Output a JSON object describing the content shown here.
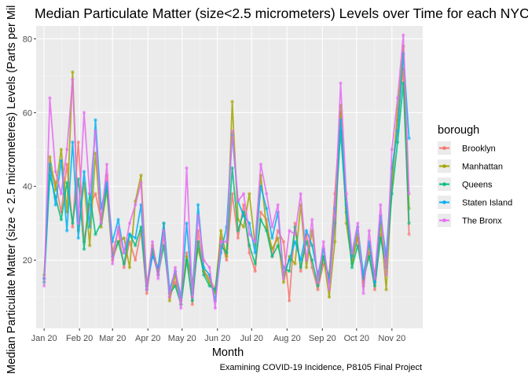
{
  "chart_data": {
    "type": "line",
    "title": "Median Particulate Matter (size<2.5 micrometers) Levels over Time for each NYC",
    "xlabel": "Month",
    "ylabel": "Median Particulate Matter (size < 2.5 micrometeres) Levels (Parts per Mil",
    "caption": "Examining COVID-19 Incidence, P8105 Final Project",
    "x_tick_labels": [
      "Jan 20",
      "Feb 20",
      "Mar 20",
      "Apr 20",
      "May 20",
      "Jun 20",
      "Jul 20",
      "Aug 20",
      "Sep 20",
      "Oct 20",
      "Nov 20"
    ],
    "y_ticks": [
      20,
      40,
      60,
      80
    ],
    "ylim": [
      1.5,
      83.5
    ],
    "x_range_days": [
      -7,
      332
    ],
    "grid": true,
    "legend": {
      "title": "borough",
      "position": "right"
    },
    "series": [
      {
        "name": "Brooklyn",
        "color": "#F8766D",
        "x": [
          0,
          5,
          10,
          15,
          20,
          25,
          30,
          35,
          40,
          45,
          50,
          55,
          60,
          65,
          70,
          75,
          80,
          85,
          90,
          95,
          100,
          105,
          110,
          115,
          120,
          125,
          130,
          135,
          140,
          145,
          150,
          155,
          160,
          165,
          170,
          175,
          180,
          185,
          190,
          195,
          200,
          205,
          210,
          215,
          220,
          225,
          230,
          235,
          240,
          245,
          250,
          255,
          260,
          265,
          270,
          275,
          280,
          285,
          290,
          295,
          300,
          305,
          310,
          315,
          320
        ],
        "values": [
          15,
          45,
          41,
          33,
          46,
          29,
          52,
          25,
          35,
          38,
          31,
          43,
          22,
          28,
          18,
          25,
          20,
          28,
          11,
          22,
          16,
          27,
          10,
          14,
          9,
          22,
          8,
          28,
          17,
          15,
          12,
          26,
          20,
          38,
          26,
          35,
          22,
          17,
          33,
          31,
          21,
          28,
          25,
          9,
          30,
          17,
          27,
          18,
          12,
          19,
          16,
          38,
          60,
          34,
          20,
          26,
          14,
          22,
          12,
          27,
          20,
          41,
          58,
          72,
          27
        ]
      },
      {
        "name": "Manhattan",
        "color": "#A3A500",
        "x": [
          0,
          5,
          10,
          15,
          20,
          25,
          30,
          35,
          40,
          45,
          50,
          55,
          60,
          65,
          70,
          75,
          80,
          85,
          90,
          95,
          100,
          105,
          110,
          115,
          120,
          125,
          130,
          135,
          140,
          145,
          150,
          155,
          160,
          165,
          170,
          175,
          180,
          185,
          190,
          195,
          200,
          205,
          210,
          215,
          220,
          225,
          230,
          235,
          240,
          245,
          250,
          255,
          260,
          265,
          270,
          275,
          280,
          285,
          290,
          295,
          300,
          305,
          310,
          315,
          320
        ],
        "values": [
          16,
          48,
          39,
          50,
          33,
          71,
          28,
          41,
          24,
          49,
          29,
          39,
          20,
          25,
          26,
          18,
          36,
          43,
          13,
          24,
          17,
          30,
          9,
          16,
          8,
          21,
          14,
          23,
          17,
          14,
          11,
          28,
          21,
          63,
          31,
          29,
          38,
          24,
          43,
          29,
          23,
          26,
          14,
          21,
          19,
          35,
          18,
          28,
          15,
          21,
          10,
          25,
          62,
          30,
          19,
          27,
          13,
          24,
          16,
          30,
          12,
          41,
          61,
          78,
          34
        ]
      },
      {
        "name": "Queens",
        "color": "#00BF7D",
        "x": [
          0,
          5,
          10,
          15,
          20,
          25,
          30,
          35,
          40,
          45,
          50,
          55,
          60,
          65,
          70,
          75,
          80,
          85,
          90,
          95,
          100,
          105,
          110,
          115,
          120,
          125,
          130,
          135,
          140,
          145,
          150,
          155,
          160,
          165,
          170,
          175,
          180,
          185,
          190,
          195,
          200,
          205,
          210,
          215,
          220,
          225,
          230,
          235,
          240,
          245,
          250,
          255,
          260,
          265,
          270,
          275,
          280,
          285,
          290,
          295,
          300,
          305,
          310,
          315,
          320
        ],
        "values": [
          14,
          43,
          37,
          31,
          41,
          30,
          42,
          23,
          38,
          27,
          30,
          40,
          21,
          25,
          19,
          27,
          24,
          29,
          12,
          23,
          16,
          24,
          11,
          13,
          8,
          20,
          9,
          25,
          16,
          13,
          12,
          24,
          22,
          45,
          28,
          33,
          24,
          19,
          31,
          28,
          21,
          24,
          18,
          17,
          29,
          18,
          25,
          20,
          13,
          21,
          15,
          30,
          55,
          33,
          18,
          24,
          15,
          21,
          13,
          26,
          18,
          38,
          52,
          68,
          30
        ]
      },
      {
        "name": "Staten Island",
        "color": "#00B0F6",
        "x": [
          0,
          5,
          10,
          15,
          20,
          25,
          30,
          35,
          40,
          45,
          50,
          55,
          60,
          65,
          70,
          75,
          80,
          85,
          90,
          95,
          100,
          105,
          110,
          115,
          120,
          125,
          130,
          135,
          140,
          145,
          150,
          155,
          160,
          165,
          170,
          175,
          180,
          185,
          190,
          195,
          200,
          205,
          210,
          215,
          220,
          225,
          230,
          235,
          240,
          245,
          250,
          255,
          260,
          265,
          270,
          275,
          280,
          285,
          290,
          295,
          300,
          305,
          310,
          315,
          320
        ],
        "values": [
          15,
          46,
          35,
          47,
          28,
          52,
          26,
          44,
          29,
          58,
          34,
          41,
          25,
          31,
          22,
          27,
          26,
          35,
          13,
          21,
          18,
          30,
          12,
          17,
          10,
          30,
          11,
          35,
          18,
          16,
          9,
          22,
          29,
          54,
          36,
          32,
          30,
          22,
          40,
          34,
          26,
          33,
          16,
          20,
          25,
          20,
          28,
          24,
          16,
          23,
          14,
          34,
          58,
          35,
          21,
          29,
          16,
          25,
          14,
          32,
          21,
          45,
          55,
          76,
          53
        ]
      },
      {
        "name": "The Bronx",
        "color": "#E76BF3",
        "x": [
          0,
          5,
          10,
          15,
          20,
          25,
          30,
          35,
          40,
          45,
          50,
          55,
          60,
          65,
          70,
          75,
          80,
          85,
          90,
          95,
          100,
          105,
          110,
          115,
          120,
          125,
          130,
          135,
          140,
          145,
          150,
          155,
          160,
          165,
          170,
          175,
          180,
          185,
          190,
          195,
          200,
          205,
          210,
          215,
          220,
          225,
          230,
          235,
          240,
          245,
          250,
          255,
          260,
          265,
          270,
          275,
          280,
          285,
          290,
          295,
          300,
          305,
          310,
          315,
          320
        ],
        "values": [
          13,
          64,
          44,
          38,
          50,
          69,
          30,
          60,
          38,
          55,
          30,
          46,
          19,
          29,
          22,
          30,
          35,
          41,
          12,
          25,
          15,
          28,
          10,
          18,
          7,
          45,
          10,
          32,
          20,
          18,
          7,
          25,
          25,
          55,
          36,
          38,
          27,
          25,
          46,
          38,
          29,
          35,
          15,
          28,
          27,
          38,
          20,
          31,
          14,
          25,
          12,
          32,
          68,
          38,
          22,
          30,
          11,
          28,
          15,
          35,
          16,
          50,
          64,
          81,
          38
        ]
      }
    ]
  }
}
